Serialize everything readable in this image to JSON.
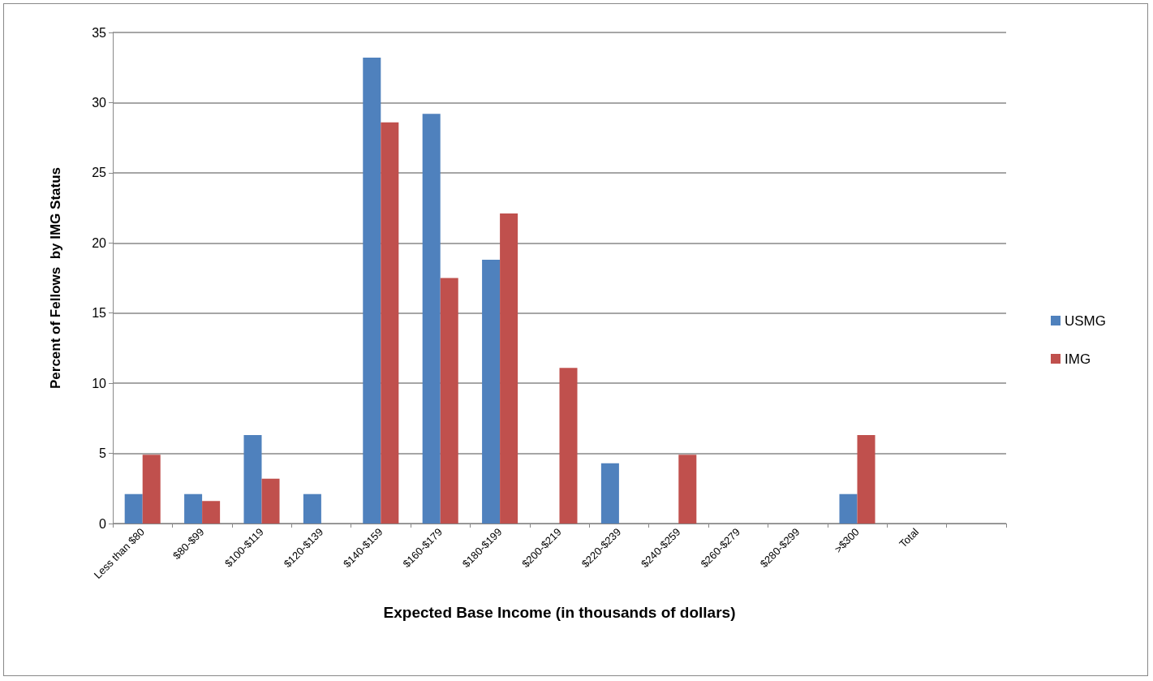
{
  "chart_data": {
    "type": "bar",
    "xlabel": "Expected Base Income (in thousands of dollars)",
    "ylabel": "Percent of Fellows  by IMG Status",
    "categories": [
      "Less than $80",
      "$80-$99",
      "$100-$119",
      "$120-$139",
      "$140-$159",
      "$160-$179",
      "$180-$199",
      "$200-$219",
      "$220-$239",
      "$240-$259",
      "$260-$279",
      "$280-$299",
      ">$300",
      "Total",
      null
    ],
    "series": [
      {
        "name": "USMG",
        "color": "#4f81bd",
        "values": [
          2.1,
          2.1,
          6.3,
          2.1,
          33.2,
          29.2,
          18.8,
          0,
          4.3,
          0,
          0,
          0,
          2.1,
          null,
          null
        ]
      },
      {
        "name": "IMG",
        "color": "#c0504d",
        "values": [
          4.9,
          1.6,
          3.2,
          0,
          28.6,
          17.5,
          22.1,
          11.1,
          0,
          4.9,
          0,
          0,
          6.3,
          null,
          null
        ]
      }
    ],
    "ylim": [
      0,
      35
    ],
    "yticks": [
      0,
      5,
      10,
      15,
      20,
      25,
      30,
      35
    ],
    "grid": "y",
    "legend": "right"
  }
}
